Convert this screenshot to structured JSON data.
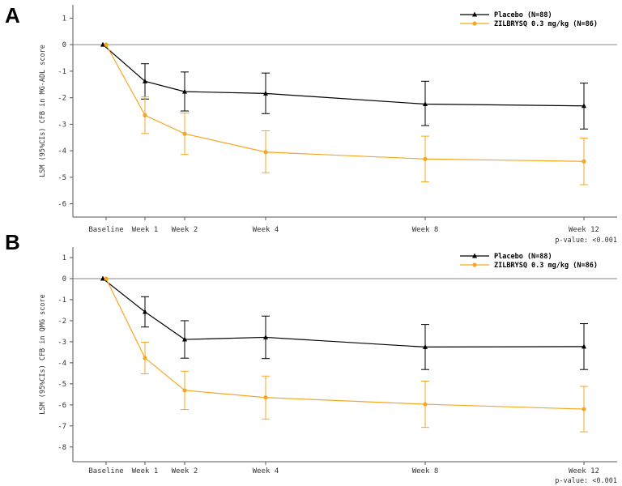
{
  "chart_data": [
    {
      "panel_label": "A",
      "type": "line",
      "ylabel": "LSM (95%CIs) CFB in MG-ADL score",
      "ylim": [
        -6.5,
        1.5
      ],
      "yticks": [
        1,
        0,
        -1,
        -2,
        -3,
        -4,
        -5,
        -6
      ],
      "x_ticks": [
        {
          "label": "Baseline",
          "week": 0
        },
        {
          "label": "Week 1",
          "week": 1
        },
        {
          "label": "Week 2",
          "week": 2
        },
        {
          "label": "Week 4",
          "week": 4
        },
        {
          "label": "Week 8",
          "week": 8
        },
        {
          "label": "Week 12",
          "week": 12
        }
      ],
      "annotation": "p-value: <0.001",
      "series": [
        {
          "name": "Placebo (N=88)",
          "color": "#000000",
          "marker": "triangle",
          "weeks": [
            0,
            1,
            2,
            4,
            8,
            12
          ],
          "values": [
            0,
            -1.38,
            -1.77,
            -1.84,
            -2.24,
            -2.31
          ],
          "ci_low": [
            null,
            -2.05,
            -2.5,
            -2.6,
            -3.05,
            -3.18
          ],
          "ci_high": [
            null,
            -0.72,
            -1.03,
            -1.07,
            -1.38,
            -1.45
          ]
        },
        {
          "name": "ZILBRYSQ 0.3 mg/kg (N=86)",
          "color": "#f5a623",
          "marker": "circle",
          "weeks": [
            0,
            1,
            2,
            4,
            8,
            12
          ],
          "values": [
            0,
            -2.66,
            -3.36,
            -4.05,
            -4.31,
            -4.4
          ],
          "ci_low": [
            null,
            -3.35,
            -4.14,
            -4.83,
            -5.17,
            -5.28
          ],
          "ci_high": [
            null,
            -1.97,
            -2.58,
            -3.25,
            -3.45,
            -3.52
          ]
        }
      ]
    },
    {
      "panel_label": "B",
      "type": "line",
      "ylabel": "LSM (95%CIs) CFB in QMG score",
      "ylim": [
        -8.7,
        1.5
      ],
      "yticks": [
        1,
        0,
        -1,
        -2,
        -3,
        -4,
        -5,
        -6,
        -7,
        -8
      ],
      "x_ticks": [
        {
          "label": "Baseline",
          "week": 0
        },
        {
          "label": "Week 1",
          "week": 1
        },
        {
          "label": "Week 2",
          "week": 2
        },
        {
          "label": "Week 4",
          "week": 4
        },
        {
          "label": "Week 8",
          "week": 8
        },
        {
          "label": "Week 12",
          "week": 12
        }
      ],
      "annotation": "p-value: <0.001",
      "series": [
        {
          "name": "Placebo (N=88)",
          "color": "#000000",
          "marker": "triangle",
          "weeks": [
            0,
            1,
            2,
            4,
            8,
            12
          ],
          "values": [
            0,
            -1.58,
            -2.89,
            -2.79,
            -3.25,
            -3.23
          ],
          "ci_low": [
            null,
            -2.3,
            -3.78,
            -3.8,
            -4.32,
            -4.32
          ],
          "ci_high": [
            null,
            -0.86,
            -2.0,
            -1.78,
            -2.18,
            -2.14
          ]
        },
        {
          "name": "ZILBRYSQ 0.3 mg/kg (N=86)",
          "color": "#f5a623",
          "marker": "circle",
          "weeks": [
            0,
            1,
            2,
            4,
            8,
            12
          ],
          "values": [
            0,
            -3.77,
            -5.31,
            -5.65,
            -5.97,
            -6.2
          ],
          "ci_low": [
            null,
            -4.52,
            -6.22,
            -6.67,
            -7.07,
            -7.28
          ],
          "ci_high": [
            null,
            -3.02,
            -4.4,
            -4.63,
            -4.87,
            -5.12
          ]
        }
      ]
    }
  ]
}
